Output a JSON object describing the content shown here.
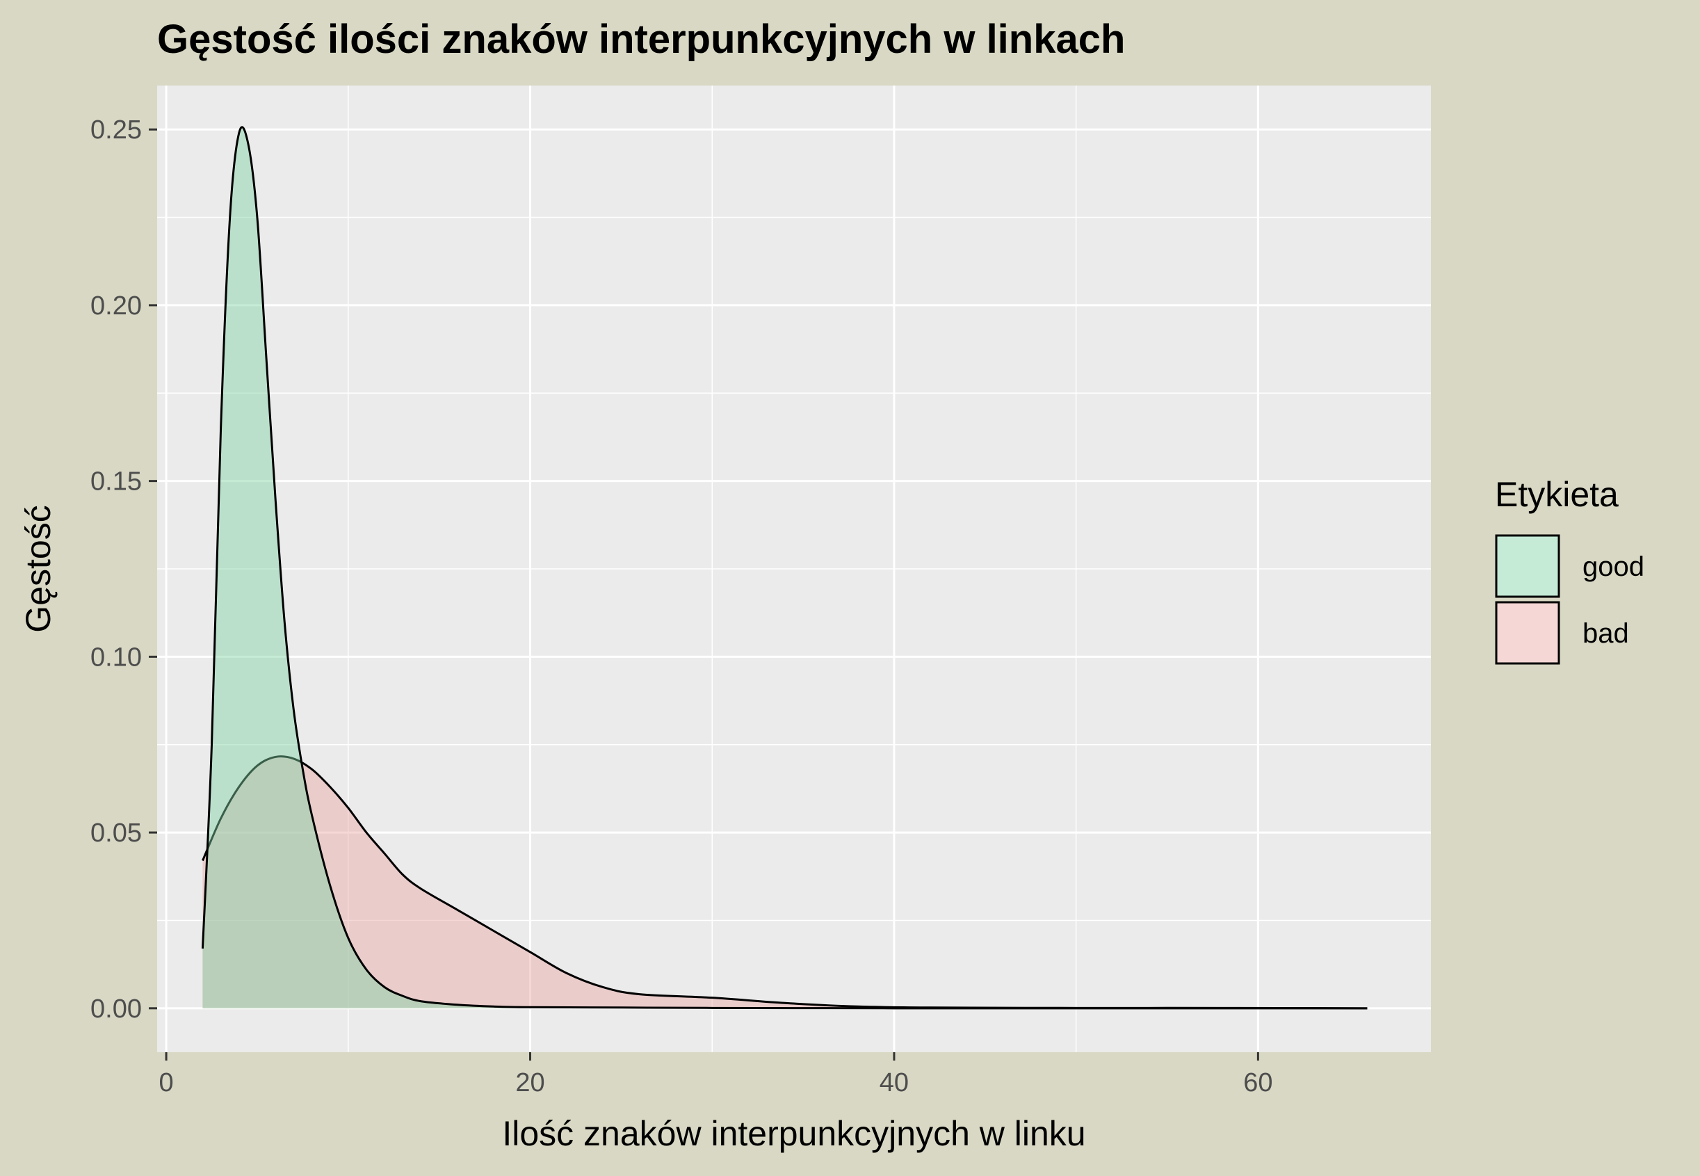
{
  "chart_data": {
    "type": "area",
    "title": "Gęstość ilości znaków interpunkcyjnych w linkach",
    "xlabel": "Ilość znaków interpunkcyjnych w linku",
    "ylabel": "Gęstość",
    "xlim": [
      -0.5,
      69.5
    ],
    "ylim": [
      -0.0125,
      0.2625
    ],
    "x_ticks": [
      0,
      20,
      40,
      60
    ],
    "x_tick_labels": [
      "0",
      "20",
      "40",
      "60"
    ],
    "y_ticks": [
      0,
      0.05,
      0.1,
      0.15,
      0.2,
      0.25
    ],
    "y_tick_labels": [
      "0.00",
      "0.05",
      "0.10",
      "0.15",
      "0.20",
      "0.25"
    ],
    "grid": true,
    "legend": {
      "title": "Etykieta",
      "placement": "right",
      "entries": [
        "good",
        "bad"
      ]
    },
    "series": [
      {
        "name": "bad",
        "color": "#e8a7a4",
        "x": [
          2,
          3,
          4,
          5,
          6,
          7,
          8,
          9,
          10,
          11,
          12,
          13,
          14,
          16,
          18,
          20,
          22,
          24,
          26,
          30,
          34,
          38,
          42,
          50,
          58,
          66
        ],
        "y": [
          0.042,
          0.054,
          0.063,
          0.069,
          0.0715,
          0.071,
          0.068,
          0.063,
          0.057,
          0.05,
          0.044,
          0.038,
          0.034,
          0.028,
          0.022,
          0.016,
          0.01,
          0.006,
          0.004,
          0.003,
          0.0015,
          0.0005,
          0.0002,
          0.0001,
          0.0001,
          0.0
        ]
      },
      {
        "name": "good",
        "color": "#7fd3a3",
        "x": [
          2,
          2.5,
          3,
          3.5,
          4,
          4.5,
          5,
          5.5,
          6,
          6.5,
          7,
          7.5,
          8,
          9,
          10,
          11,
          12,
          13,
          14,
          16,
          18,
          20,
          25,
          30,
          40,
          50,
          66
        ],
        "y": [
          0.017,
          0.075,
          0.165,
          0.225,
          0.249,
          0.246,
          0.225,
          0.185,
          0.145,
          0.11,
          0.085,
          0.068,
          0.055,
          0.035,
          0.02,
          0.011,
          0.006,
          0.0035,
          0.002,
          0.001,
          0.0005,
          0.0003,
          0.0002,
          0.0001,
          0.0,
          0.0,
          0.0
        ]
      }
    ]
  }
}
